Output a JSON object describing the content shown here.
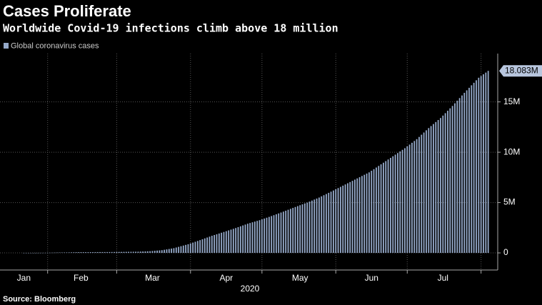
{
  "chart_data": {
    "type": "bar",
    "title": "Cases Proliferate",
    "subtitle": "Worldwide Covid-19 infections climb above 18 million",
    "x_label": "2020",
    "source": "Source: Bloomberg",
    "series": [
      {
        "name": "Global coronavirus cases",
        "color": "#95a9c9",
        "x": [
          22,
          23,
          24,
          25,
          26,
          27,
          28,
          29,
          30,
          31,
          32,
          33,
          34,
          35,
          36,
          37,
          38,
          39,
          40,
          41,
          42,
          43,
          44,
          45,
          46,
          47,
          48,
          49,
          50,
          51,
          52,
          53,
          54,
          55,
          56,
          57,
          58,
          59,
          60,
          61,
          62,
          63,
          64,
          65,
          66,
          67,
          68,
          69,
          70,
          71,
          72,
          73,
          74,
          75,
          76,
          77,
          78,
          79,
          80,
          81,
          82,
          83,
          84,
          85,
          86,
          87,
          88,
          89,
          90,
          91,
          92,
          93,
          94,
          95,
          96,
          97,
          98,
          99,
          100,
          101,
          102,
          103,
          104,
          105,
          106,
          107,
          108,
          109,
          110,
          111,
          112,
          113,
          114,
          115,
          116,
          117,
          118,
          119,
          120,
          121,
          122,
          123,
          124,
          125,
          126,
          127,
          128,
          129,
          130,
          131,
          132,
          133,
          134,
          135,
          136,
          137,
          138,
          139,
          140,
          141,
          142,
          143,
          144,
          145,
          146,
          147,
          148,
          149,
          150,
          151,
          152,
          153,
          154,
          155,
          156,
          157,
          158,
          159,
          160,
          161,
          162,
          163,
          164,
          165,
          166,
          167,
          168,
          169,
          170,
          171,
          172,
          173,
          174,
          175,
          176,
          177,
          178,
          179,
          180,
          181,
          182,
          183,
          184,
          185,
          186,
          187,
          188,
          189,
          190,
          191,
          192,
          193,
          194,
          195,
          196,
          197,
          198,
          199,
          200,
          201,
          202,
          203,
          204,
          205,
          206,
          207,
          208,
          209,
          210,
          211,
          212,
          213,
          214,
          215,
          216,
          217
        ],
        "values": [
          0.001,
          0.002,
          0.003,
          0.004,
          0.005,
          0.006,
          0.007,
          0.008,
          0.009,
          0.01,
          0.014,
          0.018,
          0.022,
          0.026,
          0.03,
          0.034,
          0.038,
          0.041,
          0.045,
          0.049,
          0.053,
          0.057,
          0.061,
          0.065,
          0.069,
          0.07,
          0.071,
          0.073,
          0.074,
          0.075,
          0.076,
          0.077,
          0.079,
          0.08,
          0.081,
          0.082,
          0.083,
          0.085,
          0.086,
          0.089,
          0.093,
          0.096,
          0.099,
          0.103,
          0.106,
          0.109,
          0.112,
          0.116,
          0.119,
          0.129,
          0.138,
          0.148,
          0.157,
          0.167,
          0.188,
          0.208,
          0.229,
          0.249,
          0.27,
          0.31,
          0.35,
          0.39,
          0.43,
          0.47,
          0.535,
          0.6,
          0.665,
          0.73,
          0.795,
          0.86,
          0.942,
          1.024,
          1.106,
          1.188,
          1.27,
          1.356,
          1.442,
          1.528,
          1.614,
          1.7,
          1.776,
          1.852,
          1.928,
          2.004,
          2.08,
          2.158,
          2.236,
          2.314,
          2.392,
          2.47,
          2.556,
          2.642,
          2.728,
          2.814,
          2.9,
          2.97,
          3.04,
          3.11,
          3.18,
          3.25,
          3.332,
          3.414,
          3.496,
          3.578,
          3.66,
          3.748,
          3.836,
          3.924,
          4.012,
          4.1,
          4.192,
          4.284,
          4.376,
          4.468,
          4.56,
          4.648,
          4.736,
          4.824,
          4.912,
          5.0,
          5.1,
          5.2,
          5.3,
          5.4,
          5.5,
          5.617,
          5.733,
          5.85,
          5.967,
          6.083,
          6.2,
          6.32,
          6.44,
          6.56,
          6.68,
          6.8,
          6.92,
          7.04,
          7.16,
          7.28,
          7.4,
          7.52,
          7.64,
          7.76,
          7.88,
          8.0,
          8.16,
          8.32,
          8.48,
          8.64,
          8.8,
          8.96,
          9.12,
          9.28,
          9.44,
          9.6,
          9.76,
          9.92,
          10.08,
          10.24,
          10.4,
          10.58,
          10.76,
          10.94,
          11.12,
          11.3,
          11.52,
          11.74,
          11.96,
          12.18,
          12.4,
          12.6,
          12.8,
          13.0,
          13.2,
          13.4,
          13.64,
          13.88,
          14.12,
          14.36,
          14.6,
          14.86,
          15.12,
          15.38,
          15.64,
          15.9,
          16.15,
          16.4,
          16.65,
          16.9,
          17.15,
          17.4,
          17.571,
          17.742,
          17.912,
          18.083
        ],
        "last_value_label": "18.083M"
      }
    ],
    "xlim": [
      12,
      221
    ],
    "xticks": [
      {
        "value": 22,
        "label": "Jan"
      },
      {
        "value": 46,
        "label": "Feb"
      },
      {
        "value": 76,
        "label": "Mar"
      },
      {
        "value": 107,
        "label": "Apr"
      },
      {
        "value": 138,
        "label": "May"
      },
      {
        "value": 168,
        "label": "Jun"
      },
      {
        "value": 198,
        "label": "Jul"
      }
    ],
    "xgrid": [
      32,
      61,
      92,
      122,
      153,
      183,
      214
    ],
    "ylim": [
      -1.7,
      19.8
    ],
    "yticks": [
      0,
      {
        "value": 5,
        "label": "5M"
      },
      {
        "value": 10,
        "label": "10M"
      },
      {
        "value": 15,
        "label": "15M"
      }
    ],
    "grid": true
  }
}
